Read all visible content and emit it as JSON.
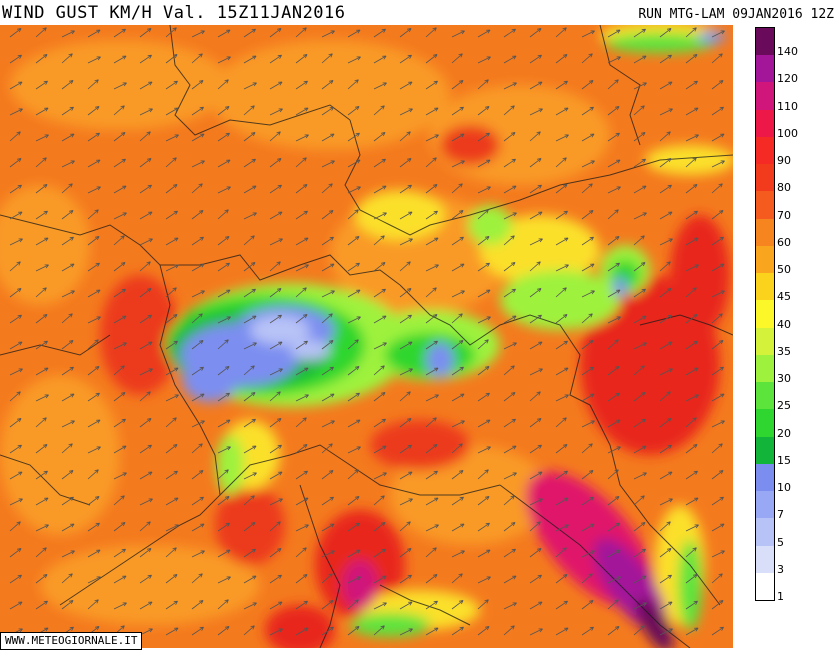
{
  "header": {
    "title": "WIND GUST KM/H Val. 15Z11JAN2016",
    "run": "RUN MTG-LAM 09JAN2016 12Z"
  },
  "credit": "WWW.METEOGIORNALE.IT",
  "legend": {
    "steps": [
      {
        "label": "140",
        "color": "#6a0a5a"
      },
      {
        "label": "120",
        "color": "#a3169a"
      },
      {
        "label": "110",
        "color": "#d0167a"
      },
      {
        "label": "100",
        "color": "#ee1848"
      },
      {
        "label": "90",
        "color": "#f62a24"
      },
      {
        "label": "80",
        "color": "#f23a1c"
      },
      {
        "label": "70",
        "color": "#f55a1e"
      },
      {
        "label": "60",
        "color": "#f7851f"
      },
      {
        "label": "50",
        "color": "#f9a51e"
      },
      {
        "label": "45",
        "color": "#fbd21c"
      },
      {
        "label": "40",
        "color": "#fbf728"
      },
      {
        "label": "35",
        "color": "#d4f23a"
      },
      {
        "label": "30",
        "color": "#9ef23e"
      },
      {
        "label": "25",
        "color": "#5de43c"
      },
      {
        "label": "20",
        "color": "#2ed62f"
      },
      {
        "label": "15",
        "color": "#13b43a"
      },
      {
        "label": "10",
        "color": "#7b8ef0"
      },
      {
        "label": "7",
        "color": "#98a8f4"
      },
      {
        "label": "5",
        "color": "#b7c2f6"
      },
      {
        "label": "3",
        "color": "#d9dff9"
      },
      {
        "label": "1",
        "color": "#ffffff"
      }
    ]
  },
  "map": {
    "wind_direction": "south-west to north-east",
    "background_color": "#f47a1e"
  }
}
